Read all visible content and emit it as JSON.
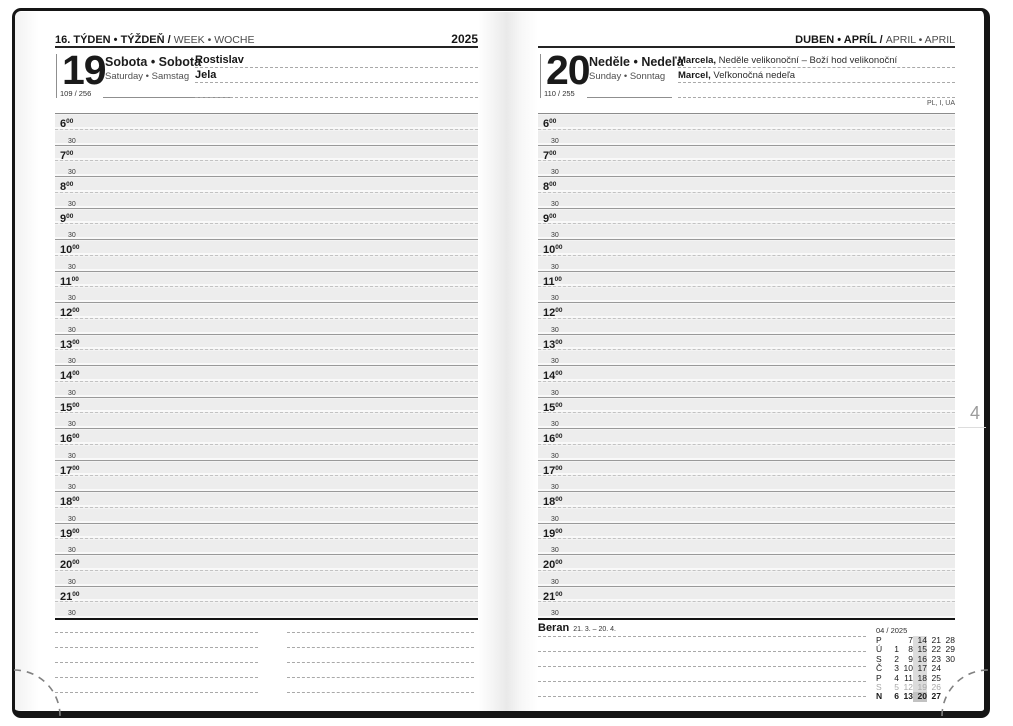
{
  "header_left": {
    "bold": "16. TÝDEN • TÝŽDEŇ / ",
    "light": "WEEK • WOCHE",
    "year": "2025"
  },
  "header_right": {
    "bold": "DUBEN • APRÍL / ",
    "light": "APRIL • APRIL"
  },
  "left_page": {
    "day_number": "19",
    "day_names_bold": "Sobota • Sobota",
    "day_names_light": "Saturday • Samstag",
    "day_count": "109 / 256",
    "name_day_lines": [
      "Rostislav",
      "Jela",
      ""
    ],
    "notes_columns": 2,
    "notes_lines_per_column": 5
  },
  "right_page": {
    "day_number": "20",
    "day_names_bold": "Neděle • Nedeľa",
    "day_names_light": "Sunday • Sonntag",
    "day_count": "110 / 255",
    "name_day_lines": [
      {
        "bold": "Marcela,",
        "text": "Neděle velikonoční – Boží hod velikonoční"
      },
      {
        "bold": "Marcel,",
        "text": "Veľkonočná nedeľa"
      },
      {
        "bold": "",
        "text": ""
      }
    ],
    "holiday_countries": "PL, I, UA",
    "zodiac": {
      "name": "Beran",
      "range": "21. 3. – 20. 4.",
      "extra_lines": 4
    },
    "mini_calendar": {
      "header": "04 / 2025",
      "highlight_col": 2,
      "today": "20",
      "rows": [
        {
          "label": "P",
          "style": "weekday",
          "days": [
            "",
            "7",
            "14",
            "21",
            "28"
          ]
        },
        {
          "label": "Ú",
          "style": "weekday",
          "days": [
            "1",
            "8",
            "15",
            "22",
            "29"
          ]
        },
        {
          "label": "S",
          "style": "weekday",
          "days": [
            "2",
            "9",
            "16",
            "23",
            "30"
          ]
        },
        {
          "label": "Č",
          "style": "weekday",
          "days": [
            "3",
            "10",
            "17",
            "24",
            ""
          ]
        },
        {
          "label": "P",
          "style": "weekday",
          "days": [
            "4",
            "11",
            "18",
            "25",
            ""
          ]
        },
        {
          "label": "S",
          "style": "saturday",
          "days": [
            "5",
            "12",
            "19",
            "26",
            ""
          ]
        },
        {
          "label": "N",
          "style": "sunday",
          "days": [
            "6",
            "13",
            "20",
            "27",
            ""
          ]
        }
      ]
    }
  },
  "time_grid": {
    "hours": [
      "6",
      "7",
      "8",
      "9",
      "10",
      "11",
      "12",
      "13",
      "14",
      "15",
      "16",
      "17",
      "18",
      "19",
      "20",
      "21"
    ],
    "minute_superscript": "00",
    "half_hour_label": "30"
  },
  "page_tab": "4",
  "colors": {
    "strip": "#ededed",
    "hour_line": "#8c8c8c",
    "half_line": "#c2c2c2",
    "rule": "#242424",
    "dotted": "#a9a9a9",
    "highlight": "#dcdcdc",
    "today": "#c2c2c2"
  }
}
